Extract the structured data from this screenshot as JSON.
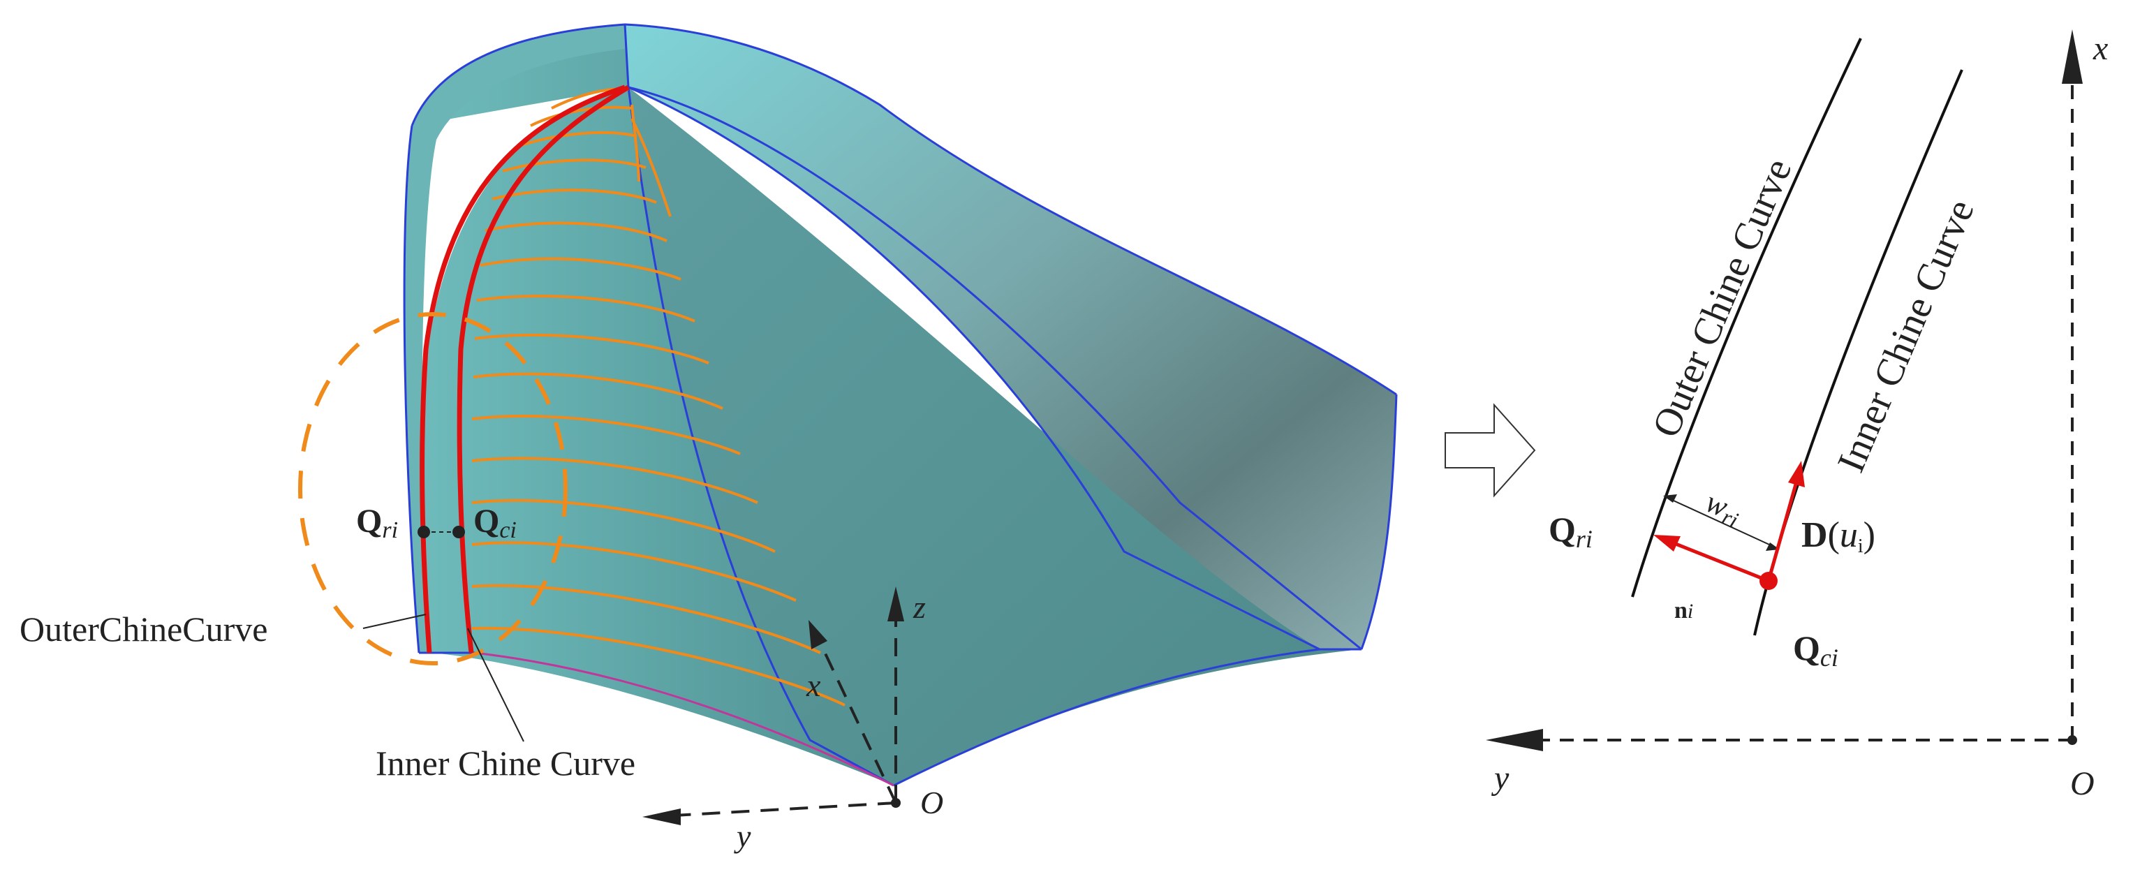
{
  "left_panel": {
    "q_r_main": "Q",
    "q_r_sub": "ri",
    "q_c_main": "Q",
    "q_c_sub": "ci",
    "outer_chine_label": "OuterChineCurve",
    "inner_chine_label": "Inner Chine Curve",
    "axis_z": "z",
    "axis_x": "x",
    "axis_y": "y",
    "origin": "O"
  },
  "right_panel": {
    "outer_chine_label": "Outer Chine Curve",
    "inner_chine_label": "Inner Chine Curve",
    "q_r_main": "Q",
    "q_r_sub": "ri",
    "q_c_main": "Q",
    "q_c_sub": "ci",
    "w_main": "w",
    "w_sub": "ri",
    "d_main": "D",
    "d_open": "(",
    "d_var": "u",
    "d_sub": "i",
    "d_close": ")",
    "n_main": "n",
    "n_sub": "i",
    "axis_x": "x",
    "axis_y": "y",
    "origin": "O"
  },
  "colors": {
    "hull_teal": "#5aa3a3",
    "hull_edge": "#2a3fd8",
    "chine_red": "#e01010",
    "section_orange": "#f08a1a",
    "ink": "#222222"
  }
}
